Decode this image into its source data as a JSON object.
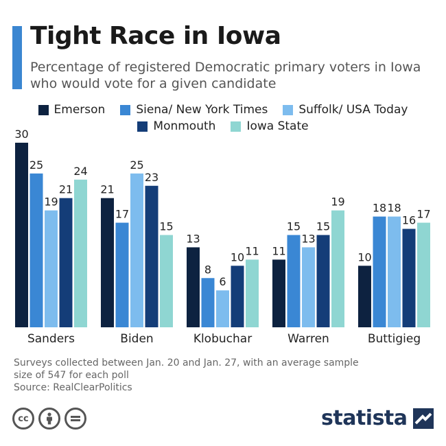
{
  "header": {
    "title": "Tight Race in Iowa",
    "subtitle": "Percentage of registered Democratic primary voters in Iowa who would vote for a given candidate"
  },
  "colors": {
    "accent": "#3b86d1",
    "brand": "#1f3559"
  },
  "chart_data": {
    "type": "bar",
    "title": "Tight Race in Iowa",
    "subtitle": "Percentage of registered Democratic primary voters in Iowa who would vote for a given candidate",
    "categories": [
      "Sanders",
      "Biden",
      "Klobuchar",
      "Warren",
      "Buttigieg"
    ],
    "series": [
      {
        "name": "Emerson",
        "color": "#0d2240",
        "values": [
          30,
          21,
          13,
          11,
          10
        ]
      },
      {
        "name": "Siena/ New York Times",
        "color": "#3a87d4",
        "values": [
          25,
          17,
          8,
          15,
          18
        ]
      },
      {
        "name": "Suffolk/ USA Today",
        "color": "#7dbcee",
        "values": [
          19,
          25,
          6,
          13,
          18
        ]
      },
      {
        "name": "Monmouth",
        "color": "#143d78",
        "values": [
          21,
          23,
          10,
          15,
          16
        ]
      },
      {
        "name": "Iowa State",
        "color": "#8fd6d2",
        "values": [
          24,
          15,
          11,
          19,
          17
        ]
      }
    ],
    "ylim": [
      0,
      30
    ],
    "xlabel": "",
    "ylabel": "",
    "grid": false,
    "legend_position": "top"
  },
  "footer": {
    "note_line1": "Surveys collected between Jan. 20 and Jan. 27, with an average sample",
    "note_line2": "size of 547 for each poll",
    "source": "Source: RealClearPolitics",
    "brand": "statista",
    "cc_icons": [
      "cc-icon",
      "attribution-icon",
      "no-derivatives-icon"
    ]
  }
}
